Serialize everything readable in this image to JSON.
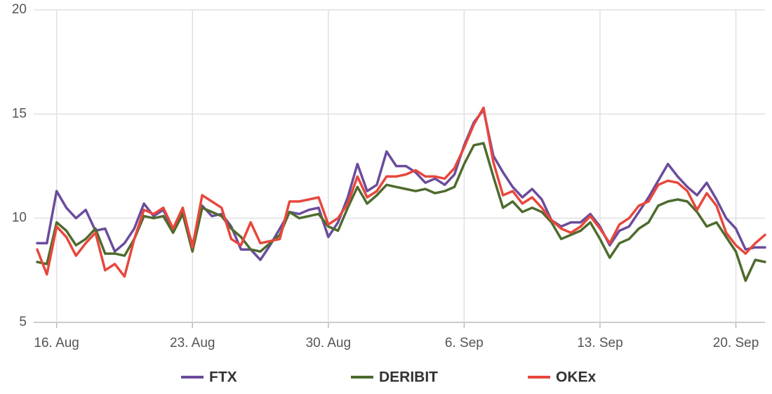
{
  "chart_data": {
    "type": "line",
    "categories": [
      null,
      null,
      "16. Aug",
      null,
      null,
      null,
      null,
      null,
      null,
      null,
      null,
      null,
      null,
      null,
      null,
      null,
      "23. Aug",
      null,
      null,
      null,
      null,
      null,
      null,
      null,
      null,
      null,
      null,
      null,
      null,
      null,
      "30. Aug",
      null,
      null,
      null,
      null,
      null,
      null,
      null,
      null,
      null,
      null,
      null,
      null,
      null,
      "6. Sep",
      null,
      null,
      null,
      null,
      null,
      null,
      null,
      null,
      null,
      null,
      null,
      null,
      null,
      "13. Sep",
      null,
      null,
      null,
      null,
      null,
      null,
      null,
      null,
      null,
      null,
      null,
      null,
      null,
      "20. Sep",
      null,
      null,
      null
    ],
    "series": [
      {
        "name": "FTX",
        "color": "#6a4c9c",
        "values": [
          8.8,
          8.8,
          11.3,
          10.5,
          10.0,
          10.4,
          9.4,
          9.5,
          8.4,
          8.8,
          9.5,
          10.7,
          10.1,
          10.4,
          9.4,
          10.3,
          8.7,
          10.6,
          10.1,
          10.2,
          9.6,
          8.5,
          8.5,
          8.0,
          8.7,
          9.5,
          10.3,
          10.2,
          10.4,
          10.5,
          9.1,
          9.8,
          11.0,
          12.6,
          11.3,
          11.6,
          13.2,
          12.5,
          12.5,
          12.2,
          11.7,
          11.9,
          11.6,
          12.1,
          13.5,
          14.6,
          15.2,
          13.0,
          12.2,
          11.5,
          11.0,
          11.4,
          10.9,
          9.9,
          9.6,
          9.8,
          9.8,
          10.2,
          9.6,
          8.7,
          9.4,
          9.6,
          10.3,
          11.0,
          11.8,
          12.6,
          12.0,
          11.5,
          11.1,
          11.7,
          10.9,
          10.0,
          9.5,
          8.5,
          8.6,
          8.6
        ]
      },
      {
        "name": "DERIBIT",
        "color": "#4e6b2e",
        "values": [
          7.9,
          7.8,
          9.8,
          9.4,
          8.7,
          9.0,
          9.5,
          8.3,
          8.3,
          8.2,
          9.0,
          10.1,
          10.0,
          10.1,
          9.3,
          10.2,
          8.4,
          10.5,
          10.3,
          10.1,
          9.5,
          9.1,
          8.5,
          8.4,
          8.8,
          9.2,
          10.3,
          10.0,
          10.1,
          10.2,
          9.6,
          9.4,
          10.5,
          11.5,
          10.7,
          11.1,
          11.6,
          11.5,
          11.4,
          11.3,
          11.4,
          11.2,
          11.3,
          11.5,
          12.6,
          13.5,
          13.6,
          12.0,
          10.5,
          10.8,
          10.3,
          10.5,
          10.3,
          9.8,
          9.0,
          9.2,
          9.4,
          9.8,
          9.0,
          8.1,
          8.8,
          9.0,
          9.5,
          9.8,
          10.6,
          10.8,
          10.9,
          10.8,
          10.3,
          9.6,
          9.8,
          9.1,
          8.4,
          7.0,
          8.0,
          7.9
        ]
      },
      {
        "name": "OKEx",
        "color": "#e8473c",
        "values": [
          8.5,
          7.3,
          9.6,
          9.1,
          8.2,
          8.8,
          9.3,
          7.5,
          7.8,
          7.2,
          9.0,
          10.4,
          10.2,
          10.5,
          9.5,
          10.5,
          8.6,
          11.1,
          10.8,
          10.5,
          9.0,
          8.7,
          9.8,
          8.8,
          8.9,
          9.0,
          10.8,
          10.8,
          10.9,
          11.0,
          9.7,
          10.0,
          10.7,
          12.0,
          11.0,
          11.3,
          12.0,
          12.0,
          12.1,
          12.3,
          12.0,
          12.0,
          11.9,
          12.4,
          13.4,
          14.5,
          15.3,
          12.7,
          11.1,
          11.3,
          10.7,
          11.0,
          10.5,
          9.9,
          9.5,
          9.3,
          9.6,
          10.1,
          9.5,
          8.8,
          9.7,
          10.0,
          10.6,
          10.8,
          11.6,
          11.8,
          11.7,
          11.3,
          10.4,
          11.2,
          10.6,
          9.3,
          8.7,
          8.3,
          8.8,
          9.2
        ]
      }
    ],
    "ylim": [
      5,
      20
    ],
    "yticks": [
      5,
      10,
      15,
      20
    ],
    "grid": true,
    "legend": "bottom"
  }
}
